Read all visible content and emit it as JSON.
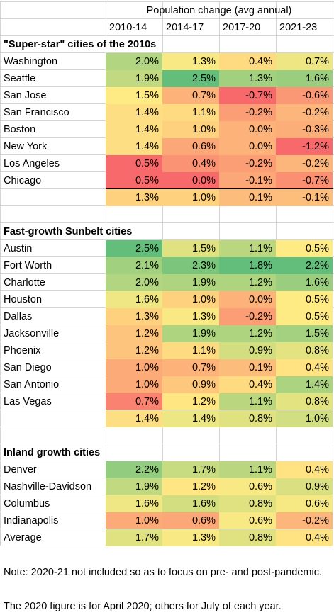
{
  "title": "Population change (avg annual)",
  "columns": [
    "2010-14",
    "2014-17",
    "2017-20",
    "2021-23"
  ],
  "colors": {
    "high": "#63be7b",
    "mid": "#ffeb84",
    "low": "#f8696b",
    "grid": "#d4d4d4"
  },
  "chart_data": {
    "type": "table",
    "groups": [
      {
        "heading": "\"Super-star\" cities of the 2010s",
        "rows": [
          {
            "city": "Washington",
            "values": [
              "2.0%",
              "1.3%",
              "0.4%",
              "0.7%"
            ]
          },
          {
            "city": "Seattle",
            "values": [
              "1.9%",
              "2.5%",
              "1.3%",
              "1.6%"
            ]
          },
          {
            "city": "San Jose",
            "values": [
              "1.5%",
              "0.7%",
              "-0.7%",
              "-0.6%"
            ]
          },
          {
            "city": "San Francisco",
            "values": [
              "1.4%",
              "1.1%",
              "-0.2%",
              "-0.2%"
            ]
          },
          {
            "city": "Boston",
            "values": [
              "1.4%",
              "1.0%",
              "0.0%",
              "-0.3%"
            ]
          },
          {
            "city": "New York",
            "values": [
              "1.4%",
              "0.6%",
              "0.0%",
              "-1.2%"
            ]
          },
          {
            "city": "Los Angeles",
            "values": [
              "0.5%",
              "0.4%",
              "-0.2%",
              "-0.2%"
            ]
          },
          {
            "city": "Chicago",
            "values": [
              "0.5%",
              "0.0%",
              "-0.1%",
              "-0.7%"
            ]
          }
        ],
        "summary": {
          "label": "",
          "values": [
            "1.3%",
            "1.0%",
            "0.1%",
            "-0.1%"
          ]
        }
      },
      {
        "heading": "Fast-growth Sunbelt cities",
        "rows": [
          {
            "city": "Austin",
            "values": [
              "2.5%",
              "1.5%",
              "1.1%",
              "0.5%"
            ]
          },
          {
            "city": "Fort Worth",
            "values": [
              "2.1%",
              "2.3%",
              "1.8%",
              "2.2%"
            ]
          },
          {
            "city": "Charlotte",
            "values": [
              "2.0%",
              "1.9%",
              "1.2%",
              "1.6%"
            ]
          },
          {
            "city": "Houston",
            "values": [
              "1.6%",
              "1.0%",
              "0.0%",
              "0.5%"
            ]
          },
          {
            "city": "Dallas",
            "values": [
              "1.3%",
              "1.3%",
              "-0.2%",
              "0.5%"
            ]
          },
          {
            "city": "Jacksonville",
            "values": [
              "1.2%",
              "1.9%",
              "1.2%",
              "1.5%"
            ]
          },
          {
            "city": "Phoenix",
            "values": [
              "1.2%",
              "1.1%",
              "0.9%",
              "0.8%"
            ]
          },
          {
            "city": "San Diego",
            "values": [
              "1.0%",
              "0.7%",
              "0.1%",
              "0.4%"
            ]
          },
          {
            "city": "San Antonio",
            "values": [
              "1.0%",
              "0.9%",
              "0.4%",
              "1.4%"
            ]
          },
          {
            "city": "Las Vegas",
            "values": [
              "0.7%",
              "1.2%",
              "1.1%",
              "0.8%"
            ]
          }
        ],
        "summary": {
          "label": "",
          "values": [
            "1.4%",
            "1.4%",
            "0.8%",
            "1.0%"
          ]
        }
      },
      {
        "heading": "Inland growth cities",
        "rows": [
          {
            "city": "Denver",
            "values": [
              "2.2%",
              "1.7%",
              "1.1%",
              "0.4%"
            ]
          },
          {
            "city": "Nashville-Davidson",
            "values": [
              "1.9%",
              "1.2%",
              "0.6%",
              "0.9%"
            ]
          },
          {
            "city": "Columbus",
            "values": [
              "1.6%",
              "1.6%",
              "0.8%",
              "0.6%"
            ]
          },
          {
            "city": "Indianapolis",
            "values": [
              "1.0%",
              "0.6%",
              "0.6%",
              "-0.2%"
            ]
          }
        ],
        "summary": {
          "label": "Average",
          "values": [
            "1.7%",
            "1.3%",
            "0.8%",
            "0.4%"
          ]
        }
      }
    ]
  },
  "notes": [
    "Note: 2020-21 not included so as to focus on pre- and post-pandemic.",
    "The 2020 figure is for April 2020; others for July of each year."
  ]
}
